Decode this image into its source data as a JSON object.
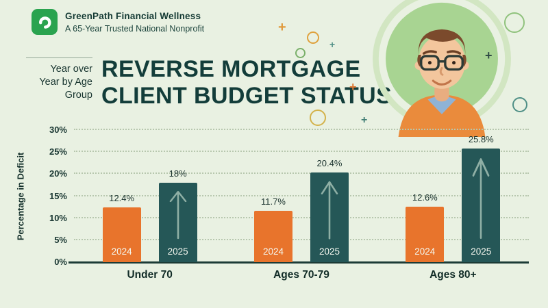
{
  "header": {
    "org_name": "GreenPath Financial Wellness",
    "org_tagline": "A 65-Year Trusted National Nonprofit",
    "kicker_lines": [
      "Year over",
      "Year by Age",
      "Group"
    ],
    "title_line1": "REVERSE MORTGAGE",
    "title_line2": "CLIENT BUDGET STATUS"
  },
  "decor": {
    "plus_glyph": "+"
  },
  "colors": {
    "background": "#e9f1e2",
    "title": "#133d3a",
    "bar_2024_orange": "#e8742c",
    "bar_2025_teal": "#255757",
    "logo_green": "#2aa34f",
    "gridline": "#b7c7ae"
  },
  "chart_data": {
    "type": "bar",
    "title": "Reverse Mortgage Client Budget Status",
    "subtitle": "Year over Year by Age Group",
    "ylabel": "Percentage in Deficit",
    "xlabel": "",
    "ylim": [
      0,
      30
    ],
    "ytick_step": 5,
    "yticks": [
      "0%",
      "5%",
      "10%",
      "15%",
      "20%",
      "25%",
      "30%"
    ],
    "grid": "dotted-horizontal",
    "legend_position": "none (years labeled inside bars)",
    "categories": [
      "Under 70",
      "Ages 70-79",
      "Ages 80+"
    ],
    "series": [
      {
        "name": "2024",
        "color": "#e8742c",
        "values": [
          12.4,
          11.7,
          12.6
        ],
        "labels": [
          "12.4%",
          "11.7%",
          "12.6%"
        ]
      },
      {
        "name": "2025",
        "color": "#255757",
        "values": [
          18,
          20.4,
          25.8
        ],
        "labels": [
          "18%",
          "20.4%",
          "25.8%"
        ],
        "annotation": "up-arrow inside bar"
      }
    ]
  }
}
